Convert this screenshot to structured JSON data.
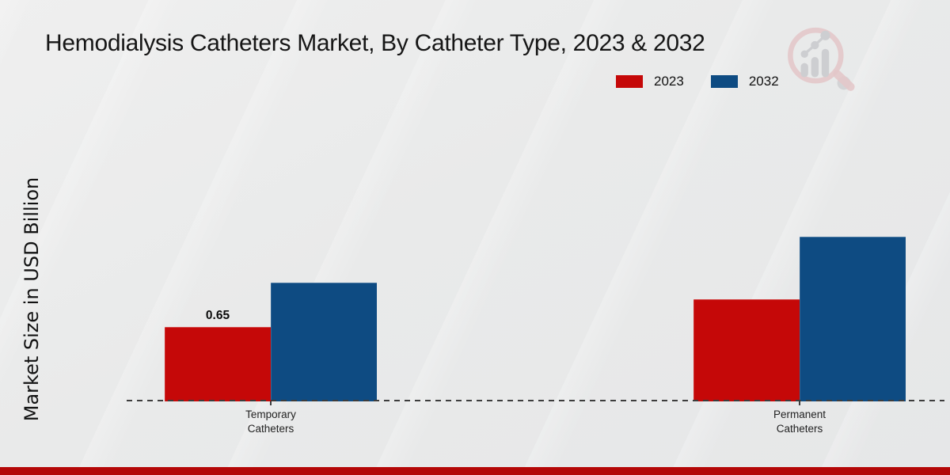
{
  "title": "Hemodialysis Catheters Market, By Catheter Type, 2023 & 2032",
  "y_axis_label": "Market Size in USD Billion",
  "legend": {
    "items": [
      {
        "label": "2023",
        "color": "#c50808"
      },
      {
        "label": "2032",
        "color": "#0e4b82"
      }
    ]
  },
  "chart_data": {
    "type": "bar",
    "title": "Hemodialysis Catheters Market, By Catheter Type, 2023 & 2032",
    "categories": [
      "Temporary Catheters",
      "Permanent Catheters"
    ],
    "series": [
      {
        "name": "2023",
        "color": "#c50808",
        "values": [
          0.65,
          0.89
        ]
      },
      {
        "name": "2032",
        "color": "#0e4b82",
        "values": [
          1.04,
          1.44
        ]
      }
    ],
    "data_labels": [
      {
        "series_index": 0,
        "category_index": 0,
        "text": "0.65"
      }
    ],
    "xlabel": "",
    "ylabel": "Market Size in USD Billion",
    "ylim": [
      0,
      1.6
    ],
    "grid": false,
    "legend_position": "top-right",
    "baseline_style": "dashed",
    "y_ticks_visible": false
  },
  "branding": {
    "logo_name": "market-research-magnifier-logo",
    "accent_bar_color": "#b40707"
  }
}
